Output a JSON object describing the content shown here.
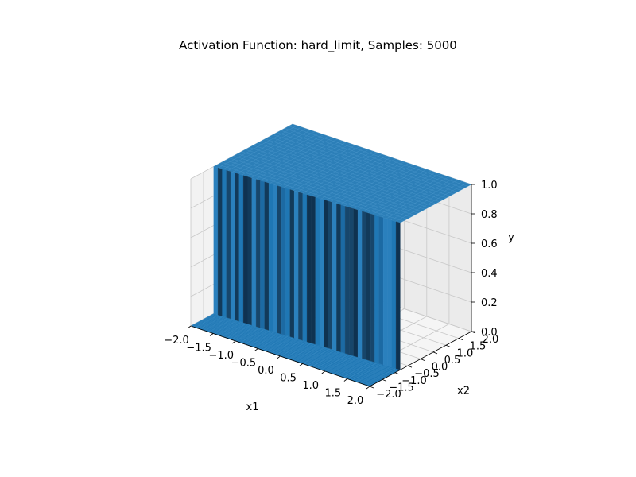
{
  "chart_data": {
    "type": "surface3d",
    "title": "Activation Function: hard_limit, Samples: 5000",
    "xlabel": "x1",
    "ylabel": "x2",
    "zlabel": "y",
    "xlim": [
      -2.0,
      2.0
    ],
    "ylim": [
      -2.0,
      2.0
    ],
    "zlim": [
      0.0,
      1.0
    ],
    "xticks": [
      "−2.0",
      "−1.5",
      "−1.0",
      "−0.5",
      "0.0",
      "0.5",
      "1.0",
      "1.5",
      "2.0"
    ],
    "yticks": [
      "−2.0",
      "−1.5",
      "−1.0",
      "−0.5",
      "0.0",
      "0.5",
      "1.0",
      "1.5",
      "2.0"
    ],
    "zticks": [
      "0.0",
      "0.2",
      "0.4",
      "0.6",
      "0.8",
      "1.0"
    ],
    "x_tick_values": [
      -2.0,
      -1.5,
      -1.0,
      -0.5,
      0.0,
      0.5,
      1.0,
      1.5,
      2.0
    ],
    "y_tick_values": [
      -2.0,
      -1.5,
      -1.0,
      -0.5,
      0.0,
      0.5,
      1.0,
      1.5,
      2.0
    ],
    "z_tick_values": [
      0.0,
      0.2,
      0.4,
      0.6,
      0.8,
      1.0
    ],
    "function": "hard_limit",
    "surface": {
      "description_value_rule": "y = 1 where x2 > -0.95 + 0.08*x1 else 0",
      "boundary_x2_at_x1": {
        "x1": [
          -2.0,
          2.0
        ],
        "x2": [
          -1.1,
          -0.8
        ]
      },
      "low_value": 0,
      "high_value": 1
    },
    "surface_color": "#1f77b4",
    "grid": true
  }
}
